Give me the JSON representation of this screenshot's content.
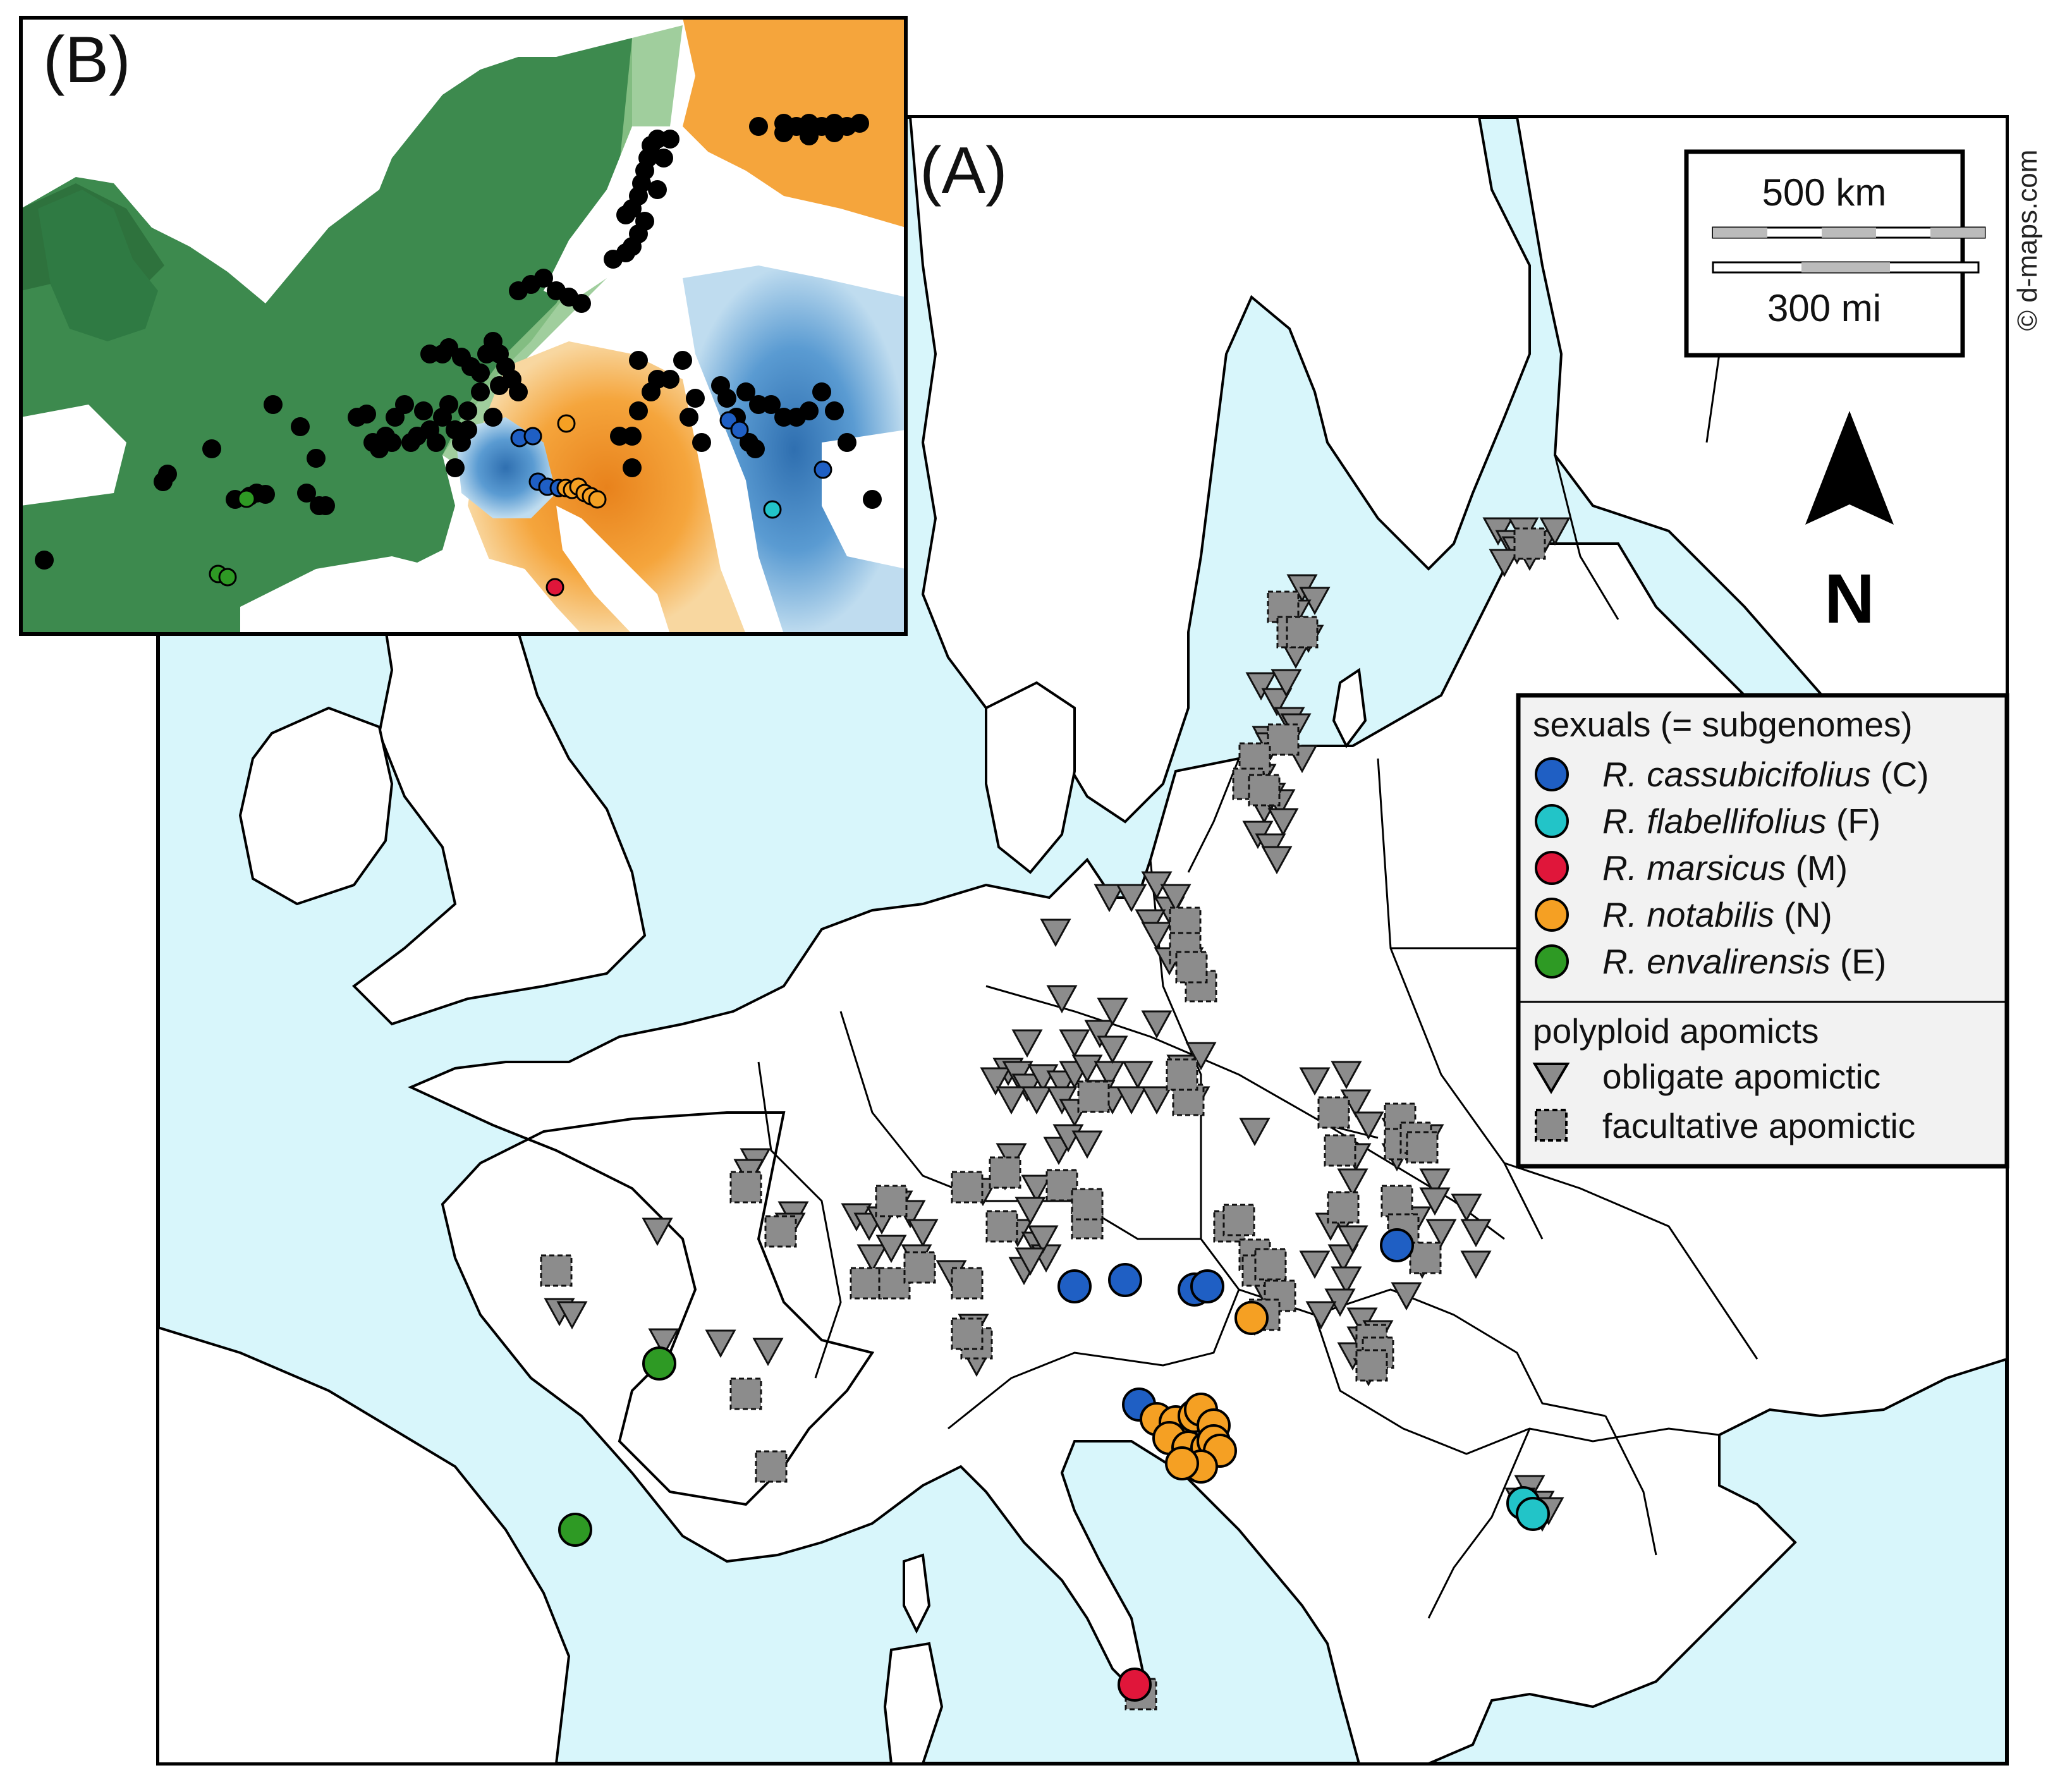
{
  "panel_a": {
    "label": "(A)",
    "scale": {
      "km_label": "500 km",
      "mi_label": "300 mi"
    },
    "credit": "© d-maps.com",
    "north_label": "N",
    "legend": {
      "sexuals_title": "sexuals (= subgenomes)",
      "species": [
        {
          "name": "R. cassubicifolius",
          "code": "(C)",
          "color": "#1f5fc4"
        },
        {
          "name": "R. flabellifolius",
          "code": "(F)",
          "color": "#22c4c8"
        },
        {
          "name": "R. marsicus",
          "code": "(M)",
          "color": "#e0163a"
        },
        {
          "name": "R. notabilis",
          "code": "(N)",
          "color": "#f5a023"
        },
        {
          "name": "R. envalirensis",
          "code": "(E)",
          "color": "#2e9a24"
        }
      ],
      "apomicts_title": "polyploid apomicts",
      "apomicts": [
        {
          "label": "obligate apomictic",
          "symbol": "triangle"
        },
        {
          "label": "facultative apomictic",
          "symbol": "square"
        }
      ]
    },
    "colors": {
      "sea": "#d8f6fb",
      "land": "#ffffff",
      "apomict": "#8c8c8c"
    }
  },
  "panel_b": {
    "label": "(B)",
    "colors": {
      "green_dark": "#2f7a43",
      "green_light": "#a9d6a0",
      "orange": "#f5a53c",
      "blue": "#3f86c4"
    }
  }
}
